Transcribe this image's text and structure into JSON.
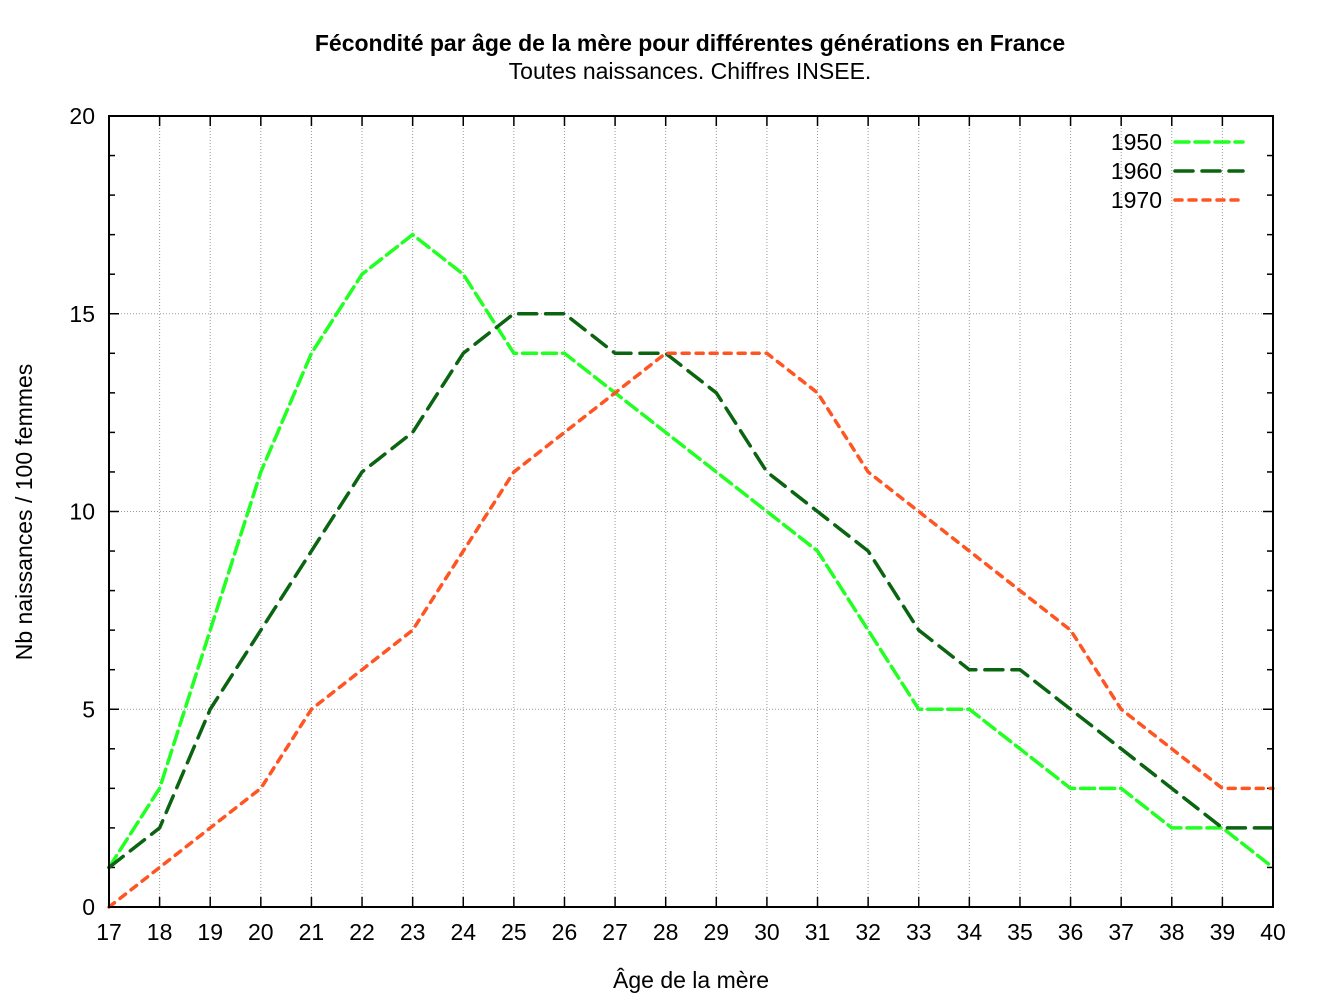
{
  "chart_data": {
    "type": "line",
    "title": "Fécondité par âge de la mère pour différentes générations en France",
    "subtitle": "Toutes naissances. Chiffres INSEE.",
    "xlabel": "Âge de la mère",
    "ylabel": "Nb naissances / 100 femmes",
    "xlim": [
      17,
      40
    ],
    "ylim": [
      0,
      20
    ],
    "x": [
      17,
      18,
      19,
      20,
      21,
      22,
      23,
      24,
      25,
      26,
      27,
      28,
      29,
      30,
      31,
      32,
      33,
      34,
      35,
      36,
      37,
      38,
      39,
      40
    ],
    "yticks": [
      0,
      5,
      10,
      15,
      20
    ],
    "grid": true,
    "legend_position": "top-right",
    "series": [
      {
        "name": "1950",
        "color": "#22ff22",
        "dash": "long-dash",
        "values": [
          1,
          3,
          7,
          11,
          14,
          16,
          17,
          16,
          14,
          14,
          13,
          12,
          11,
          10,
          9,
          7,
          5,
          5,
          4,
          3,
          3,
          2,
          2,
          1
        ]
      },
      {
        "name": "1960",
        "color": "#0a6410",
        "dash": "dash",
        "values": [
          1,
          2,
          5,
          7,
          9,
          11,
          12,
          14,
          15,
          15,
          14,
          14,
          13,
          11,
          10,
          9,
          7,
          6,
          6,
          5,
          4,
          3,
          2,
          2
        ]
      },
      {
        "name": "1970",
        "color": "#ff5522",
        "dash": "dot",
        "values": [
          0,
          1,
          2,
          3,
          5,
          6,
          7,
          9,
          11,
          12,
          13,
          14,
          14,
          14,
          13,
          11,
          10,
          9,
          8,
          7,
          5,
          4,
          3,
          3
        ]
      }
    ]
  }
}
